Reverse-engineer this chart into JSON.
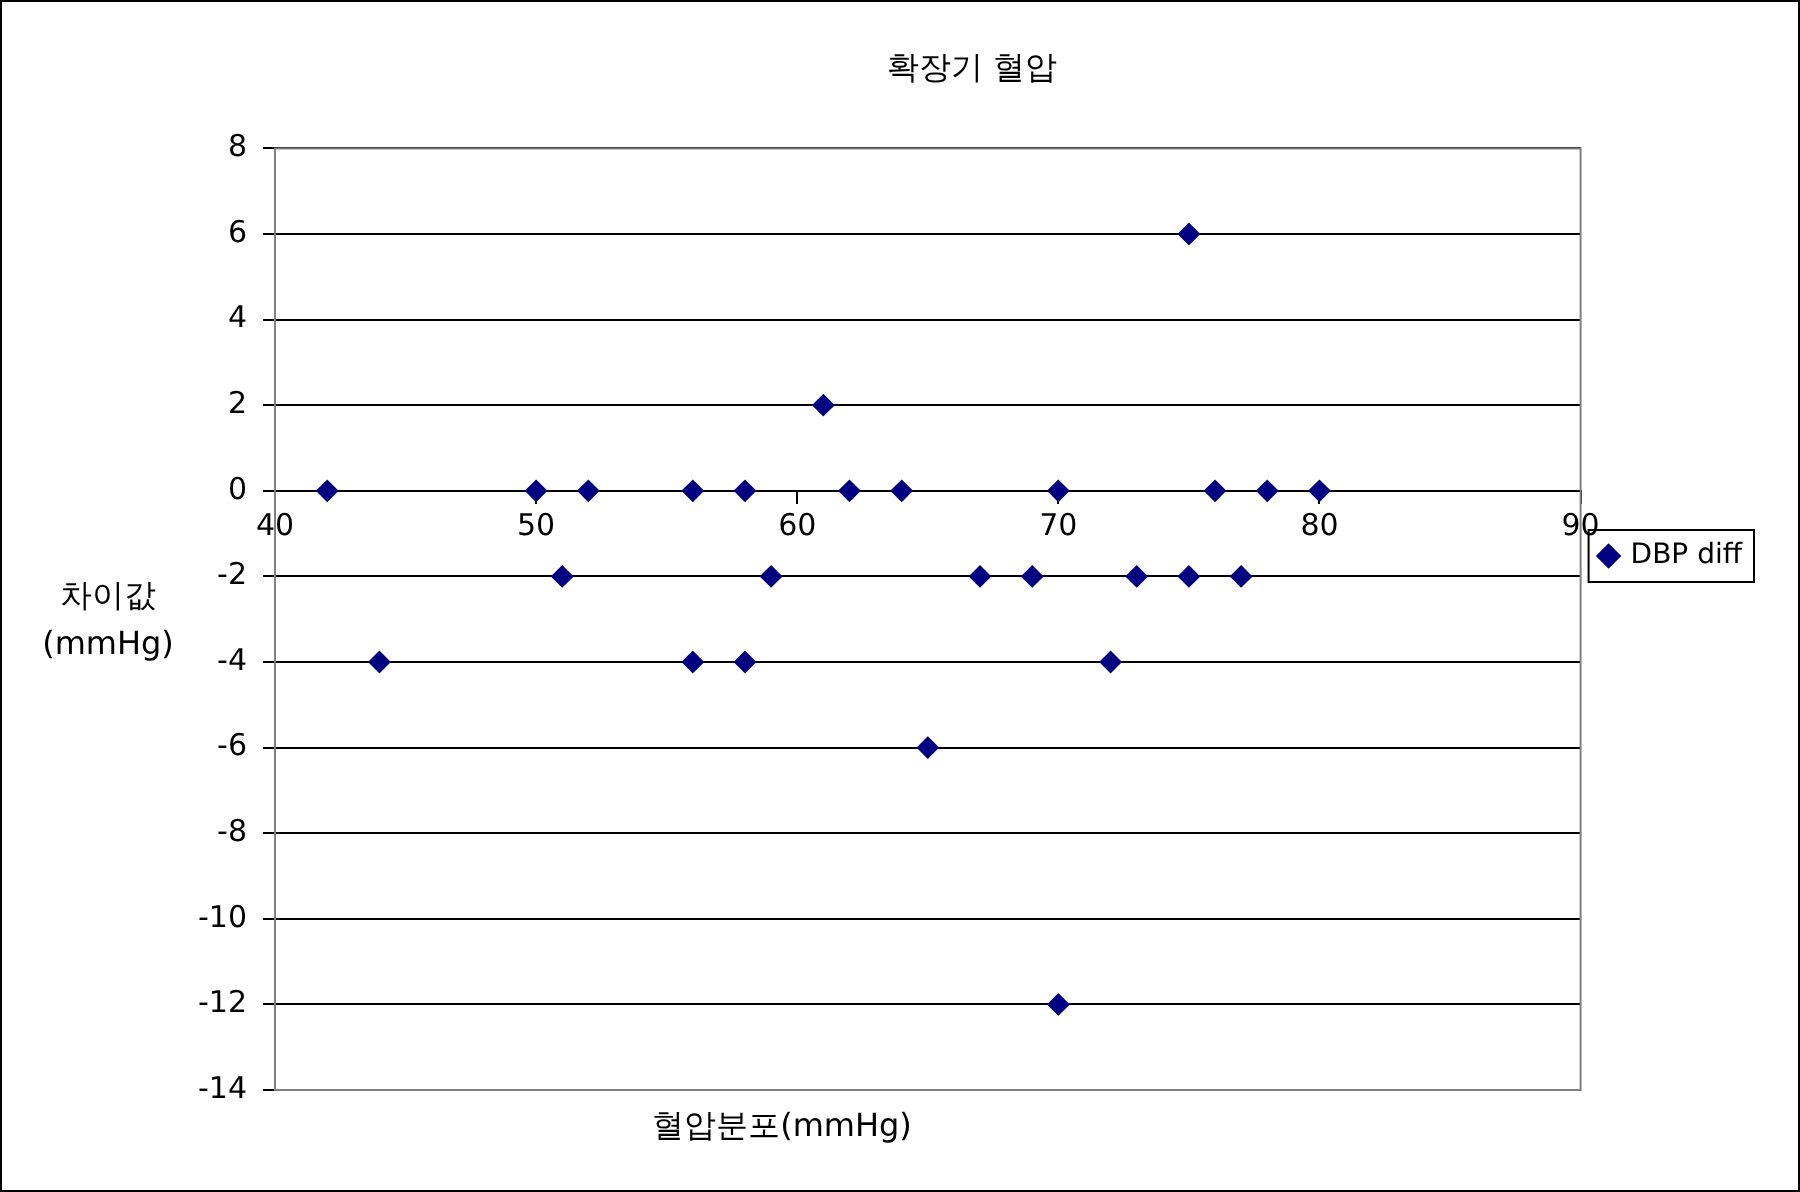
{
  "chart_data": {
    "type": "scatter",
    "title": "확장기 혈압",
    "xlabel": "혈압분포(mmHg)",
    "ylabel": "차이값\n(mmHg)",
    "xlim": [
      40,
      90
    ],
    "xticks": [
      40,
      50,
      60,
      70,
      80,
      90
    ],
    "ylim": [
      -14,
      8
    ],
    "yticks": [
      -14,
      -12,
      -10,
      -8,
      -6,
      -4,
      -2,
      0,
      2,
      4,
      6,
      8
    ],
    "grid": "y",
    "legend": "right",
    "marker": "diamond",
    "series": [
      {
        "name": "DBP diff",
        "color": "#000080",
        "x": [
          42,
          44,
          50,
          51,
          52,
          56,
          56,
          58,
          58,
          59,
          61,
          62,
          64,
          65,
          67,
          69,
          70,
          70,
          72,
          73,
          75,
          75,
          76,
          77,
          78,
          80
        ],
        "values": [
          0,
          -4,
          0,
          -2,
          0,
          0,
          -4,
          0,
          -4,
          -2,
          2,
          0,
          0,
          -6,
          -2,
          -2,
          0,
          -12,
          -4,
          -2,
          6,
          -2,
          0,
          -2,
          0,
          0
        ]
      }
    ]
  }
}
